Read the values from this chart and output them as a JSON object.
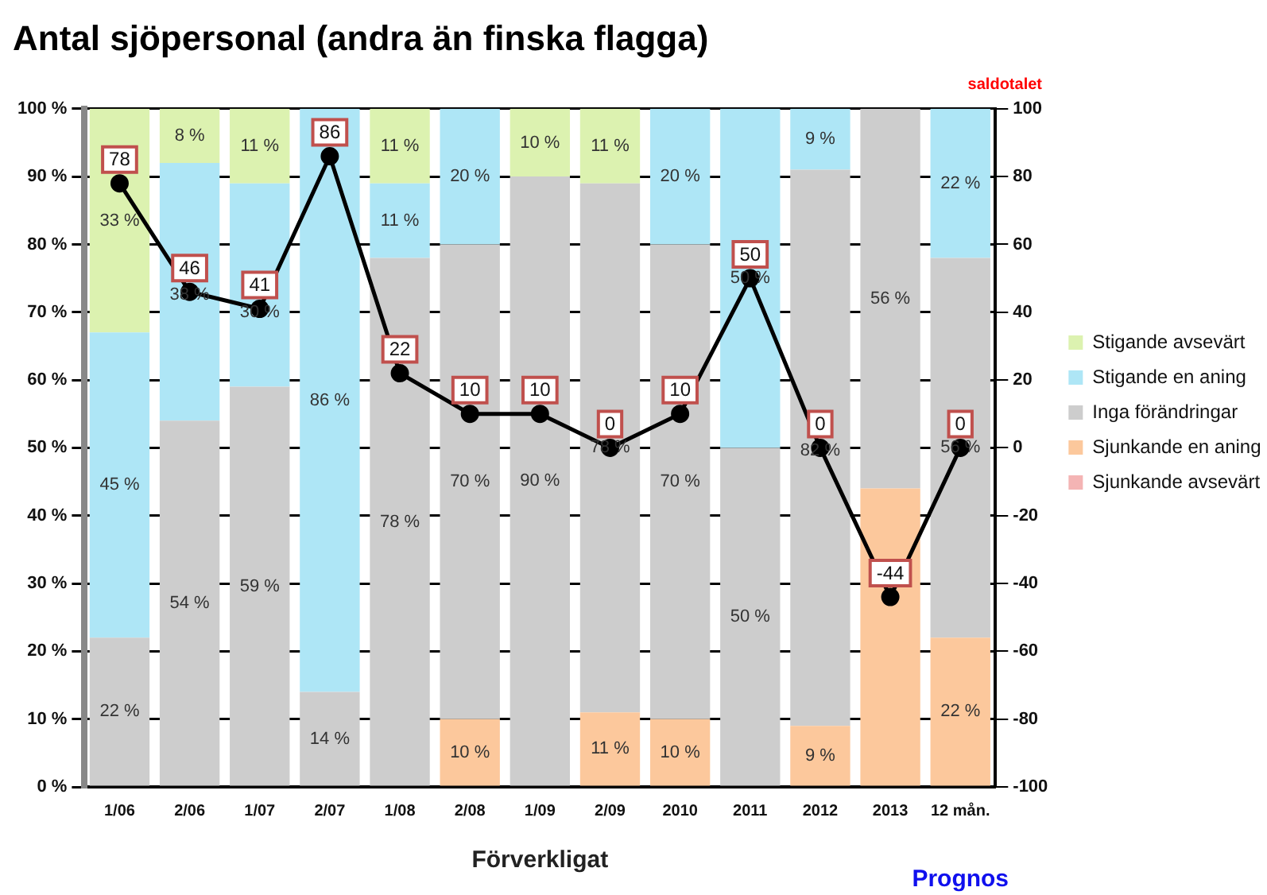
{
  "chart_data": {
    "type": "bar",
    "title": "Antal sjöpersonal (andra än finska flagga)",
    "y2label": "saldotalet",
    "stacked": true,
    "grid": "y",
    "legend": "right",
    "marker": "circle",
    "data_labels": true,
    "categories": [
      "1/06",
      "2/06",
      "1/07",
      "2/07",
      "1/08",
      "2/08",
      "1/09",
      "2/09",
      "2010",
      "2011",
      "2012",
      "2013",
      "12 mån."
    ],
    "series": [
      {
        "name": "Sjunkande avsevärt",
        "color": "#f4b4b4",
        "values": [
          null,
          null,
          null,
          null,
          null,
          null,
          null,
          null,
          null,
          null,
          null,
          null,
          null
        ]
      },
      {
        "name": "Sjunkande en aning",
        "color": "#fcc89c",
        "values": [
          null,
          null,
          null,
          null,
          null,
          10,
          null,
          11,
          10,
          null,
          9,
          44,
          22
        ],
        "value_labels": [
          null,
          null,
          null,
          null,
          null,
          "10 %",
          null,
          "11 %",
          "10 %",
          null,
          "9 %",
          null,
          "22 %"
        ]
      },
      {
        "name": "Inga förändringar",
        "color": "#cdcdcd",
        "values": [
          22,
          54,
          59,
          14,
          78,
          70,
          90,
          78,
          70,
          50,
          82,
          56,
          56
        ],
        "value_labels": [
          "22 %",
          "54 %",
          "59 %",
          "14 %",
          "78 %",
          "70 %",
          "90 %",
          "78 %",
          "70 %",
          "50 %",
          "82 %",
          "56 %",
          "56 %"
        ]
      },
      {
        "name": "Stigande en aning",
        "color": "#aee6f6",
        "values": [
          45,
          38,
          30,
          86,
          11,
          20,
          null,
          null,
          20,
          50,
          9,
          null,
          22
        ],
        "value_labels": [
          "45 %",
          "38 %",
          "30 %",
          "86 %",
          "11 %",
          "20 %",
          null,
          null,
          "20 %",
          "50 %",
          "9 %",
          null,
          "22 %"
        ]
      },
      {
        "name": "Stigande avsevärt",
        "color": "#dcf2b0",
        "values": [
          33,
          8,
          11,
          null,
          11,
          null,
          10,
          11,
          null,
          null,
          null,
          null,
          null
        ],
        "value_labels": [
          "33 %",
          "8 %",
          "11 %",
          null,
          "11 %",
          null,
          "10 %",
          "11 %",
          null,
          null,
          null,
          null,
          null
        ]
      },
      {
        "type": "line",
        "axis": "y2",
        "color": "#000000",
        "values": [
          78,
          46,
          41,
          86,
          22,
          10,
          10,
          0,
          10,
          50,
          0,
          -44,
          0
        ]
      }
    ],
    "ylim": [
      0,
      100
    ],
    "yticks": [
      {
        "value": 0,
        "label": "0 %"
      },
      {
        "value": 10,
        "label": "10 %"
      },
      {
        "value": 20,
        "label": "20 %"
      },
      {
        "value": 30,
        "label": "30 %"
      },
      {
        "value": 40,
        "label": "40 %"
      },
      {
        "value": 50,
        "label": "50 %"
      },
      {
        "value": 60,
        "label": "60 %"
      },
      {
        "value": 70,
        "label": "70 %"
      },
      {
        "value": 80,
        "label": "80 %"
      },
      {
        "value": 90,
        "label": "90 %"
      },
      {
        "value": 100,
        "label": "100 %"
      }
    ],
    "y2lim": [
      -100,
      100
    ],
    "y2ticks": [
      -100,
      -80,
      -60,
      -40,
      -20,
      0,
      20,
      40,
      60,
      80,
      100
    ],
    "annotations": [
      "Förverkligat",
      "Prognos"
    ]
  }
}
